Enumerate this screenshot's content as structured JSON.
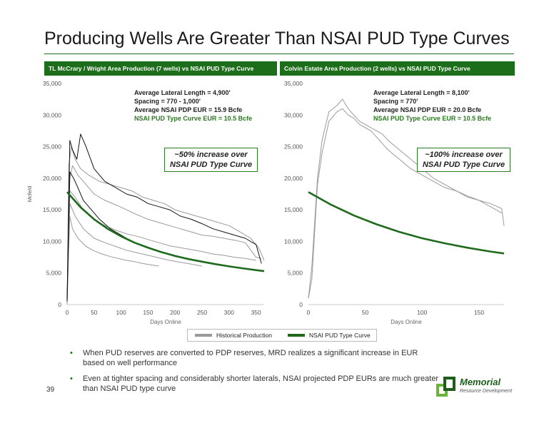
{
  "title": "Producing Wells Are Greater Than NSAI PUD Type Curves",
  "page_number": "39",
  "logo": {
    "name": "Memorial",
    "tagline": "Resource Development"
  },
  "legend": {
    "historical": "Historical Production",
    "pud": "NSAI PUD Type Curve"
  },
  "bullets": [
    "When PUD reserves are converted to PDP reserves, MRD realizes a significant increase in EUR based on well performance",
    "Even at tighter spacing and considerably shorter laterals, NSAI projected PDP EURs are much greater than NSAI PUD type curve"
  ],
  "colors": {
    "header_green": "#1d6e1a",
    "pud_curve": "#1e6b1e",
    "historical_gray": "#999999",
    "black_well": "#111111"
  },
  "chart_data": [
    {
      "type": "line",
      "header": "TL McCrary / Wright Area Production (7 wells) vs NSAI PUD Type Curve",
      "ylabel": "Mcfe/d",
      "xlabel": "Days Online",
      "xlim": [
        0,
        365
      ],
      "ylim": [
        0,
        35000
      ],
      "xticks": [
        0,
        50,
        100,
        150,
        200,
        250,
        300,
        350
      ],
      "yticks": [
        0,
        5000,
        10000,
        15000,
        20000,
        25000,
        30000,
        35000
      ],
      "ytick_labels": [
        "0",
        "5,000",
        "10,000",
        "15,000",
        "20,000",
        "25,000",
        "30,000",
        "35,000"
      ],
      "stats": [
        "Average Lateral Length = 4,900'",
        "Spacing = 770 - 1,000'",
        "Average NSAI PDP EUR = 15.9 Bcfe",
        "NSAI PUD Type Curve EUR = 10.5 Bcfe"
      ],
      "callout": [
        "~50% increase over",
        "NSAI PUD Type Curve"
      ],
      "series": [
        {
          "name": "NSAI PUD Type Curve",
          "style": "pud",
          "x": [
            0,
            25,
            50,
            75,
            100,
            125,
            150,
            175,
            200,
            225,
            250,
            275,
            300,
            325,
            350,
            365
          ],
          "y": [
            17800,
            15400,
            13500,
            12000,
            10800,
            9800,
            9000,
            8300,
            7700,
            7200,
            6800,
            6400,
            6050,
            5750,
            5450,
            5300
          ]
        },
        {
          "style": "historical",
          "x": [
            0,
            3,
            8,
            15,
            25,
            40,
            60,
            80,
            100,
            120,
            140,
            160,
            180,
            200,
            220,
            240,
            260,
            280,
            300,
            320,
            340,
            355,
            365
          ],
          "y": [
            0,
            22000,
            25000,
            23000,
            21500,
            20500,
            19500,
            19000,
            18500,
            18000,
            17000,
            16500,
            16000,
            15000,
            14500,
            14000,
            13500,
            13000,
            12500,
            11500,
            10500,
            9000,
            7000
          ]
        },
        {
          "style": "historical",
          "x": [
            0,
            5,
            10,
            20,
            35,
            50,
            70,
            90,
            110,
            130,
            150,
            170,
            190,
            210,
            230,
            250,
            270,
            290,
            310,
            330,
            350,
            360
          ],
          "y": [
            1000,
            20000,
            22000,
            20500,
            19000,
            17500,
            16500,
            15800,
            15000,
            14200,
            13500,
            13000,
            12500,
            12000,
            11500,
            11000,
            10800,
            10500,
            10200,
            9800,
            7500,
            7300
          ]
        },
        {
          "style": "historical",
          "x": [
            0,
            5,
            15,
            30,
            50,
            70,
            90,
            110,
            130,
            150,
            170,
            190,
            210,
            230,
            250,
            270,
            290,
            310,
            330,
            350
          ],
          "y": [
            500,
            18000,
            17000,
            15000,
            13500,
            12500,
            11800,
            11200,
            10800,
            10300,
            9800,
            9300,
            9000,
            8700,
            8400,
            8000,
            7800,
            7500,
            7300,
            7000
          ]
        },
        {
          "style": "historical",
          "x": [
            0,
            5,
            15,
            30,
            50,
            70,
            90,
            110,
            130,
            150,
            170,
            190,
            210,
            230,
            250
          ],
          "y": [
            500,
            16000,
            14000,
            12000,
            10500,
            9800,
            9200,
            8600,
            8200,
            7800,
            7400,
            7000,
            6700,
            6400,
            6100
          ]
        },
        {
          "style": "historical",
          "x": [
            0,
            5,
            10,
            20,
            35,
            50,
            65,
            80,
            95,
            110,
            125,
            140,
            155,
            170
          ],
          "y": [
            500,
            14000,
            12000,
            10500,
            9200,
            8500,
            8000,
            7600,
            7300,
            7000,
            6800,
            6500,
            6300,
            6100
          ]
        },
        {
          "style": "black",
          "x": [
            0,
            5,
            10,
            18,
            25,
            35,
            50,
            70,
            90,
            110,
            130,
            150,
            170,
            190,
            210,
            230,
            250,
            270,
            290,
            310,
            330,
            350,
            360
          ],
          "y": [
            500,
            26000,
            24500,
            23000,
            27000,
            25000,
            21500,
            19500,
            18500,
            17500,
            17000,
            16000,
            15500,
            15000,
            14000,
            13500,
            12800,
            12000,
            11500,
            11000,
            10500,
            9500,
            6500
          ]
        },
        {
          "style": "black",
          "x": [
            0,
            5,
            12,
            20,
            30,
            45,
            60,
            80,
            100,
            120,
            140,
            160,
            180,
            200
          ],
          "y": [
            500,
            21000,
            20000,
            18500,
            16500,
            15000,
            13500,
            12000,
            11000,
            10000,
            9400,
            8800,
            8200,
            7600
          ]
        }
      ]
    },
    {
      "type": "line",
      "header": "Colvin Estate Area Production (2 wells) vs NSAI PUD Type Curve",
      "ylabel": "",
      "xlabel": "Days Online",
      "xlim": [
        0,
        172
      ],
      "ylim": [
        0,
        35000
      ],
      "xticks": [
        0,
        50,
        100,
        150
      ],
      "yticks": [
        0,
        5000,
        10000,
        15000,
        20000,
        25000,
        30000,
        35000
      ],
      "ytick_labels": [
        "0",
        "5,000",
        "10,000",
        "15,000",
        "20,000",
        "25,000",
        "30,000",
        "35,000"
      ],
      "stats": [
        "Average Lateral Length = 8,100'",
        "Spacing = 770'",
        "Average NSAI PDP EUR = 20.0 Bcfe",
        "NSAI PUD Type Curve EUR = 10.5 Bcfe"
      ],
      "callout": [
        "~100% increase over",
        "NSAI PUD Type Curve"
      ],
      "series": [
        {
          "name": "NSAI PUD Type Curve",
          "style": "pud",
          "x": [
            0,
            20,
            40,
            60,
            80,
            100,
            120,
            140,
            160,
            172
          ],
          "y": [
            17800,
            15800,
            14100,
            12700,
            11500,
            10500,
            9700,
            9000,
            8400,
            8100
          ]
        },
        {
          "style": "historical",
          "x": [
            0,
            3,
            8,
            12,
            18,
            25,
            30,
            35,
            40,
            45,
            50,
            55,
            60,
            65,
            70,
            80,
            90,
            100,
            110,
            120,
            130,
            140,
            150,
            160,
            170,
            172
          ],
          "y": [
            1000,
            6000,
            20000,
            26000,
            30500,
            31500,
            32500,
            31000,
            30000,
            29000,
            28500,
            28000,
            27500,
            27000,
            26000,
            24500,
            23000,
            21500,
            20000,
            19000,
            18000,
            17200,
            16500,
            16000,
            15200,
            12500
          ]
        },
        {
          "style": "historical",
          "x": [
            0,
            3,
            8,
            12,
            18,
            25,
            30,
            35,
            40,
            45,
            50,
            55,
            60,
            65,
            70,
            80,
            90,
            100,
            110,
            120,
            130,
            140,
            150,
            160,
            170
          ],
          "y": [
            1000,
            4000,
            19000,
            24000,
            29000,
            30500,
            31000,
            30000,
            29500,
            28500,
            28000,
            27500,
            26500,
            25500,
            24500,
            23000,
            21500,
            20500,
            19500,
            18500,
            18000,
            17000,
            16500,
            15500,
            14500
          ]
        }
      ]
    }
  ]
}
